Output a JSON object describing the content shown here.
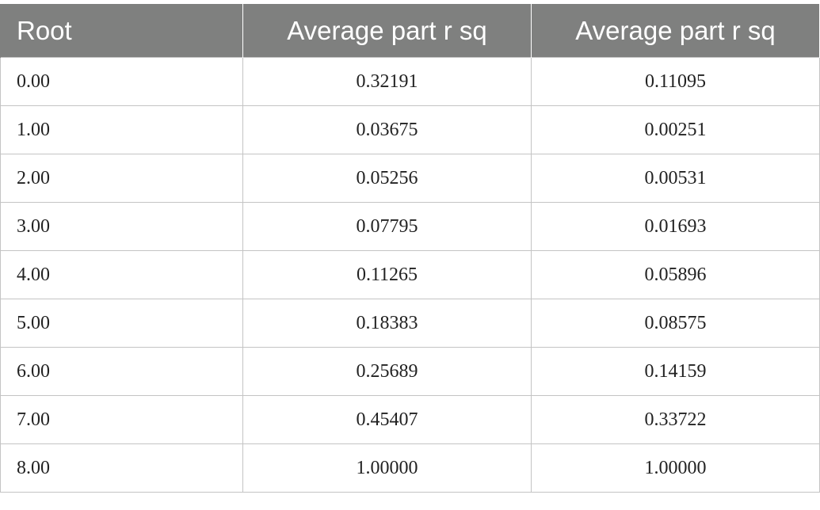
{
  "table": {
    "headers": [
      "Root",
      "Average part r sq",
      "Average part r sq"
    ],
    "rows": [
      [
        "0.00",
        "0.32191",
        "0.11095"
      ],
      [
        "1.00",
        "0.03675",
        "0.00251"
      ],
      [
        "2.00",
        "0.05256",
        "0.00531"
      ],
      [
        "3.00",
        "0.07795",
        "0.01693"
      ],
      [
        "4.00",
        "0.11265",
        "0.05896"
      ],
      [
        "5.00",
        "0.18383",
        "0.08575"
      ],
      [
        "6.00",
        "0.25689",
        "0.14159"
      ],
      [
        "7.00",
        "0.45407",
        "0.33722"
      ],
      [
        "8.00",
        "1.00000",
        "1.00000"
      ]
    ]
  },
  "colors": {
    "header_bg": "#7f807f",
    "header_text": "#ffffff",
    "grid_line": "#c4c4c4"
  }
}
